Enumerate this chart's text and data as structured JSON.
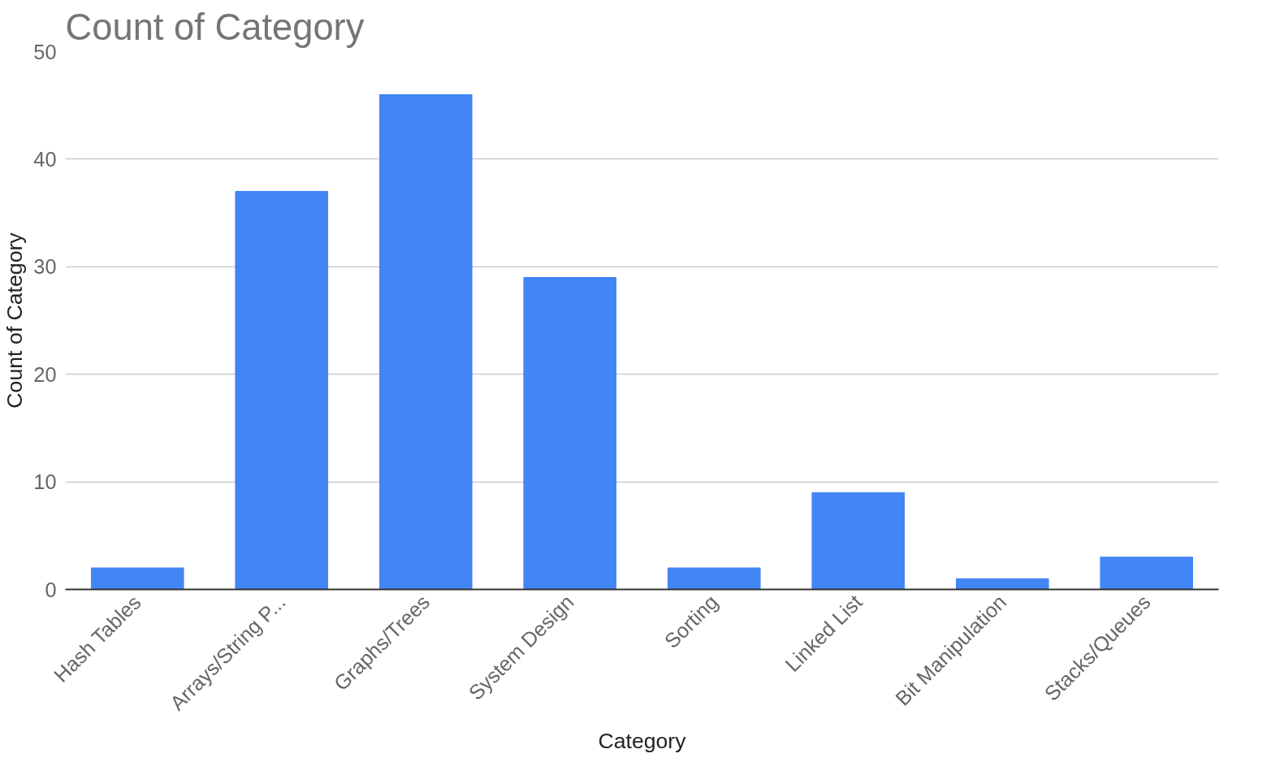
{
  "chart_data": {
    "type": "bar",
    "title": "Count of Category",
    "xlabel": "Category",
    "ylabel": "Count of Category",
    "categories": [
      "Hash Tables",
      "Arrays/String P...",
      "Graphs/Trees",
      "System Design",
      "Sorting",
      "Linked List",
      "Bit Manipulation",
      "Stacks/Queues"
    ],
    "values": [
      2,
      37,
      46,
      29,
      2,
      9,
      1,
      3
    ],
    "color": "#4285f4",
    "ylim": [
      0,
      50
    ],
    "yticks": [
      0,
      10,
      20,
      30,
      40,
      50
    ],
    "grid": "y"
  }
}
